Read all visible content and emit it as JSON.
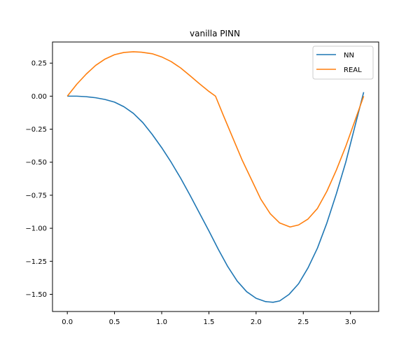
{
  "chart_data": {
    "type": "line",
    "title": "vanilla PINN",
    "xlabel": "",
    "ylabel": "",
    "xlim": [
      -0.157,
      3.299
    ],
    "ylim": [
      -1.63,
      0.41
    ],
    "xticks": [
      0.0,
      0.5,
      1.0,
      1.5,
      2.0,
      2.5,
      3.0
    ],
    "xtick_labels": [
      "0.0",
      "0.5",
      "1.0",
      "1.5",
      "2.0",
      "2.5",
      "3.0"
    ],
    "yticks": [
      0.25,
      0.0,
      -0.25,
      -0.5,
      -0.75,
      -1.0,
      -1.25,
      -1.5
    ],
    "ytick_labels": [
      "0.25",
      "0.00",
      "−0.25",
      "−0.50",
      "−0.75",
      "−1.00",
      "−1.25",
      "−1.50"
    ],
    "grid": false,
    "legend_position": "top-right",
    "series": [
      {
        "name": "NN",
        "color": "#1f77b4",
        "points": [
          [
            0.0,
            0.0
          ],
          [
            0.1,
            0.0
          ],
          [
            0.2,
            -0.004
          ],
          [
            0.3,
            -0.012
          ],
          [
            0.4,
            -0.025
          ],
          [
            0.5,
            -0.045
          ],
          [
            0.6,
            -0.08
          ],
          [
            0.7,
            -0.13
          ],
          [
            0.8,
            -0.2
          ],
          [
            0.9,
            -0.29
          ],
          [
            1.0,
            -0.39
          ],
          [
            1.1,
            -0.5
          ],
          [
            1.2,
            -0.62
          ],
          [
            1.3,
            -0.75
          ],
          [
            1.4,
            -0.885
          ],
          [
            1.5,
            -1.02
          ],
          [
            1.6,
            -1.16
          ],
          [
            1.7,
            -1.29
          ],
          [
            1.8,
            -1.4
          ],
          [
            1.9,
            -1.48
          ],
          [
            2.0,
            -1.53
          ],
          [
            2.1,
            -1.555
          ],
          [
            2.18,
            -1.56
          ],
          [
            2.25,
            -1.55
          ],
          [
            2.35,
            -1.5
          ],
          [
            2.45,
            -1.42
          ],
          [
            2.55,
            -1.3
          ],
          [
            2.65,
            -1.15
          ],
          [
            2.75,
            -0.96
          ],
          [
            2.85,
            -0.74
          ],
          [
            2.95,
            -0.5
          ],
          [
            3.05,
            -0.22
          ],
          [
            3.14,
            0.03
          ]
        ]
      },
      {
        "name": "REAL",
        "color": "#ff7f0e",
        "points": [
          [
            0.0,
            0.0
          ],
          [
            0.1,
            0.09
          ],
          [
            0.2,
            0.167
          ],
          [
            0.3,
            0.233
          ],
          [
            0.4,
            0.281
          ],
          [
            0.5,
            0.314
          ],
          [
            0.6,
            0.331
          ],
          [
            0.7,
            0.336
          ],
          [
            0.785,
            0.333
          ],
          [
            0.9,
            0.321
          ],
          [
            1.0,
            0.297
          ],
          [
            1.1,
            0.262
          ],
          [
            1.2,
            0.214
          ],
          [
            1.3,
            0.155
          ],
          [
            1.4,
            0.094
          ],
          [
            1.5,
            0.036
          ],
          [
            1.57,
            0.0
          ],
          [
            1.65,
            -0.14
          ],
          [
            1.75,
            -0.31
          ],
          [
            1.85,
            -0.48
          ],
          [
            1.95,
            -0.63
          ],
          [
            2.05,
            -0.78
          ],
          [
            2.15,
            -0.89
          ],
          [
            2.25,
            -0.96
          ],
          [
            2.36,
            -0.99
          ],
          [
            2.45,
            -0.975
          ],
          [
            2.55,
            -0.93
          ],
          [
            2.65,
            -0.85
          ],
          [
            2.75,
            -0.72
          ],
          [
            2.85,
            -0.56
          ],
          [
            2.95,
            -0.38
          ],
          [
            3.05,
            -0.18
          ],
          [
            3.14,
            0.0
          ]
        ]
      }
    ]
  }
}
